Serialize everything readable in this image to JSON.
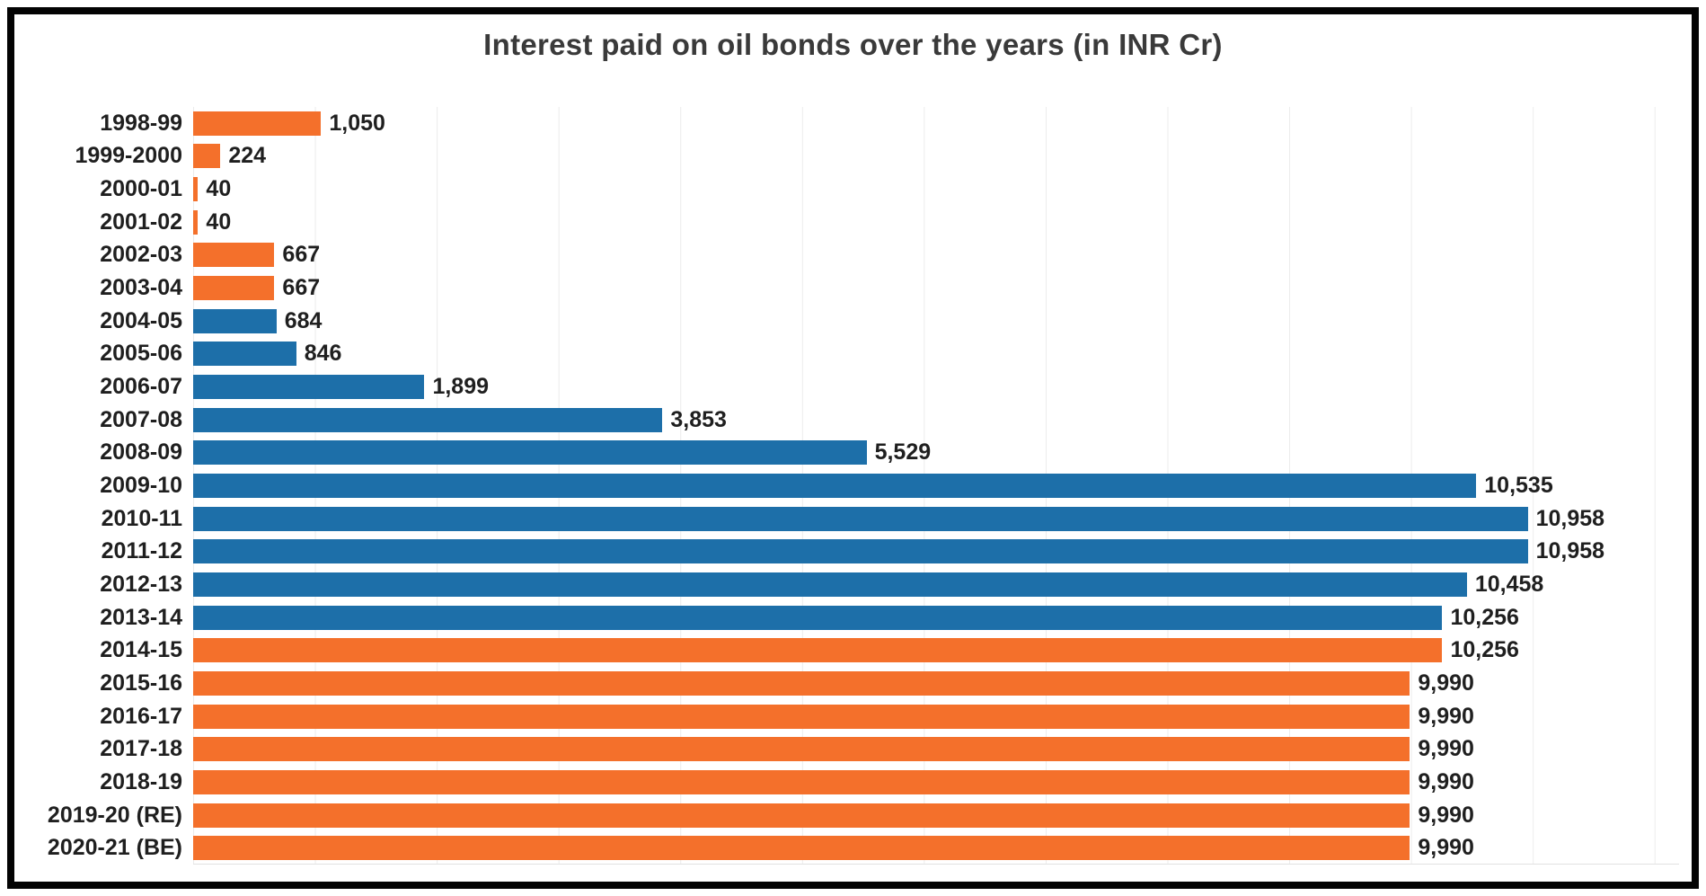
{
  "chart_data": {
    "type": "bar",
    "orientation": "horizontal",
    "title": "Interest paid on oil bonds over the years (in INR Cr)",
    "xlabel": "",
    "ylabel": "",
    "xlim": [
      0,
      12200
    ],
    "grid": true,
    "grid_axis": "x",
    "grid_step": 1000,
    "legend": false,
    "categories": [
      "1998-99",
      "1999-2000",
      "2000-01",
      "2001-02",
      "2002-03",
      "2003-04",
      "2004-05",
      "2005-06",
      "2006-07",
      "2007-08",
      "2008-09",
      "2009-10",
      "2010-11",
      "2011-12",
      "2012-13",
      "2013-14",
      "2014-15",
      "2015-16",
      "2016-17",
      "2017-18",
      "2018-19",
      "2019-20 (RE)",
      "2020-21 (BE)"
    ],
    "values": [
      1050,
      224,
      40,
      40,
      667,
      667,
      684,
      846,
      1899,
      3853,
      5529,
      10535,
      10958,
      10958,
      10458,
      10256,
      10256,
      9990,
      9990,
      9990,
      9990,
      9990,
      9990
    ],
    "value_labels": [
      "1,050",
      "224",
      "40",
      "40",
      "667",
      "667",
      "684",
      "846",
      "1,899",
      "3,853",
      "5,529",
      "10,535",
      "10,958",
      "10,958",
      "10,458",
      "10,256",
      "10,256",
      "9,990",
      "9,990",
      "9,990",
      "9,990",
      "9,990",
      "9,990"
    ],
    "bar_colors": [
      "orange",
      "orange",
      "orange",
      "orange",
      "orange",
      "orange",
      "blue",
      "blue",
      "blue",
      "blue",
      "blue",
      "blue",
      "blue",
      "blue",
      "blue",
      "blue",
      "orange",
      "orange",
      "orange",
      "orange",
      "orange",
      "orange",
      "orange"
    ],
    "palette": {
      "blue": "#1d6fa9",
      "orange": "#f4702b"
    },
    "grid_color": "#ececec",
    "axis_line_color": "#e2e2e2",
    "label_color": "#1f1f1f",
    "title_color": "#3a3a3a",
    "frame_color": "#030303"
  }
}
